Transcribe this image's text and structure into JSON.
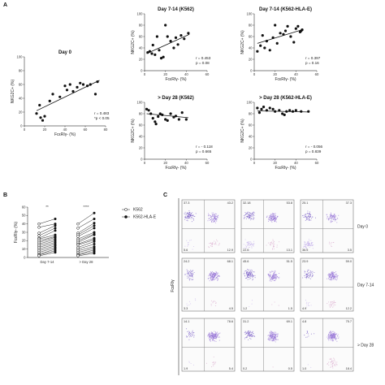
{
  "panels": {
    "A": "A",
    "B": "B",
    "C": "C"
  },
  "chart_data": [
    {
      "id": "day0",
      "type": "scatter",
      "title": "Day 0",
      "xlabel": "FcεRIγ- (%)",
      "ylabel": "NKG2C+ (%)",
      "xlim": [
        0,
        80
      ],
      "ylim": [
        0,
        100
      ],
      "xticks": [
        "0",
        "20",
        "40",
        "60",
        "80"
      ],
      "yticks": [
        "0",
        "20",
        "40",
        "60",
        "80",
        "100"
      ],
      "stat_r": "r = 0.483",
      "stat_p": "*p < 0.05",
      "fit": [
        [
          12,
          22
        ],
        [
          74,
          66
        ]
      ],
      "points": [
        [
          12,
          18
        ],
        [
          15,
          30
        ],
        [
          16,
          12
        ],
        [
          18,
          8
        ],
        [
          20,
          14
        ],
        [
          25,
          36
        ],
        [
          28,
          46
        ],
        [
          35,
          42
        ],
        [
          40,
          58
        ],
        [
          42,
          52
        ],
        [
          45,
          60
        ],
        [
          48,
          50
        ],
        [
          52,
          56
        ],
        [
          55,
          62
        ],
        [
          58,
          60
        ],
        [
          62,
          58
        ],
        [
          65,
          60
        ],
        [
          70,
          46
        ],
        [
          72,
          64
        ]
      ]
    },
    {
      "id": "d714k562",
      "type": "scatter",
      "title": "Day 7-14 (K562)",
      "xlabel": "FcεRIγ- (%)",
      "ylabel": "NKG2C+ (%)",
      "xlim": [
        0,
        60
      ],
      "ylim": [
        0,
        100
      ],
      "xticks": [
        "0",
        "20",
        "40",
        "60"
      ],
      "yticks": [
        "0",
        "20",
        "40",
        "60",
        "80",
        "100"
      ],
      "stat_r": "r = 0.453",
      "stat_p": "p = 0.08",
      "fit": [
        [
          2,
          30
        ],
        [
          43,
          64
        ]
      ],
      "points": [
        [
          3,
          32
        ],
        [
          5,
          34
        ],
        [
          7,
          30
        ],
        [
          8,
          45
        ],
        [
          10,
          28
        ],
        [
          12,
          60
        ],
        [
          14,
          36
        ],
        [
          16,
          22
        ],
        [
          18,
          24
        ],
        [
          20,
          80
        ],
        [
          22,
          60
        ],
        [
          25,
          52
        ],
        [
          28,
          40
        ],
        [
          30,
          58
        ],
        [
          32,
          46
        ],
        [
          35,
          62
        ],
        [
          38,
          56
        ],
        [
          42,
          66
        ]
      ]
    },
    {
      "id": "d714hlae",
      "type": "scatter",
      "title": "Day 7-14 (K562-HLA-E)",
      "xlabel": "FcεRIγ- (%)",
      "ylabel": "NKG2C+ (%)",
      "xlim": [
        0,
        60
      ],
      "ylim": [
        0,
        100
      ],
      "xticks": [
        "0",
        "20",
        "40",
        "60"
      ],
      "yticks": [
        "0",
        "20",
        "40",
        "60",
        "80",
        "100"
      ],
      "stat_r": "r = 0.397",
      "stat_p": "p = 0.16",
      "fit": [
        [
          3,
          48
        ],
        [
          46,
          72
        ]
      ],
      "points": [
        [
          3,
          34
        ],
        [
          6,
          44
        ],
        [
          8,
          62
        ],
        [
          10,
          40
        ],
        [
          12,
          52
        ],
        [
          15,
          36
        ],
        [
          18,
          58
        ],
        [
          20,
          80
        ],
        [
          22,
          48
        ],
        [
          25,
          66
        ],
        [
          28,
          64
        ],
        [
          30,
          70
        ],
        [
          32,
          78
        ],
        [
          35,
          60
        ],
        [
          38,
          50
        ],
        [
          40,
          74
        ],
        [
          42,
          78
        ],
        [
          44,
          68
        ],
        [
          45,
          70
        ],
        [
          46,
          72
        ]
      ]
    },
    {
      "id": "d28k562",
      "type": "scatter",
      "title": "> Day 28 (K562)",
      "xlabel": "FcεRIγ- (%)",
      "ylabel": "NKG2C+ (%)",
      "xlim": [
        0,
        60
      ],
      "ylim": [
        0,
        100
      ],
      "xticks": [
        "0",
        "20",
        "40",
        "60"
      ],
      "yticks": [
        "0",
        "20",
        "40",
        "60",
        "80",
        "100"
      ],
      "stat_r": "r = - 0.118",
      "stat_p": "p = 0.665",
      "fit": [
        [
          2,
          80
        ],
        [
          42,
          73
        ]
      ],
      "points": [
        [
          2,
          88
        ],
        [
          4,
          86
        ],
        [
          6,
          80
        ],
        [
          8,
          72
        ],
        [
          10,
          66
        ],
        [
          11,
          62
        ],
        [
          13,
          75
        ],
        [
          15,
          80
        ],
        [
          17,
          78
        ],
        [
          20,
          70
        ],
        [
          22,
          68
        ],
        [
          25,
          80
        ],
        [
          28,
          74
        ],
        [
          30,
          76
        ],
        [
          33,
          70
        ],
        [
          36,
          82
        ],
        [
          40,
          70
        ]
      ]
    },
    {
      "id": "d28hlae",
      "type": "scatter",
      "title": "> Day 28 (K562-HLA-E)",
      "xlabel": "FcεRIγ- (%)",
      "ylabel": "NKG2C+ (%)",
      "xlim": [
        0,
        60
      ],
      "ylim": [
        0,
        100
      ],
      "xticks": [
        "0",
        "20",
        "40",
        "60"
      ],
      "yticks": [
        "0",
        "20",
        "40",
        "60",
        "80",
        "100"
      ],
      "stat_r": "r = - 0.056",
      "stat_p": "p = 0.839",
      "fit": [
        [
          3,
          85
        ],
        [
          52,
          83
        ]
      ],
      "points": [
        [
          3,
          90
        ],
        [
          5,
          82
        ],
        [
          7,
          88
        ],
        [
          9,
          92
        ],
        [
          12,
          86
        ],
        [
          15,
          90
        ],
        [
          18,
          88
        ],
        [
          20,
          84
        ],
        [
          24,
          86
        ],
        [
          27,
          80
        ],
        [
          29,
          78
        ],
        [
          31,
          84
        ],
        [
          34,
          86
        ],
        [
          37,
          84
        ],
        [
          40,
          86
        ],
        [
          45,
          84
        ],
        [
          52,
          84
        ]
      ]
    },
    {
      "id": "paired",
      "type": "line",
      "ylabel": "FcεRIγ- (%)",
      "ylim": [
        0,
        60
      ],
      "yticks": [
        "0",
        "10",
        "20",
        "30",
        "40",
        "50",
        "60"
      ],
      "groups": [
        "Day 7-14",
        "> Day 28"
      ],
      "sig": [
        "**",
        "****"
      ],
      "legend": [
        "K562",
        "K562-HLA-E"
      ],
      "pairs": [
        [
          [
            40,
            46
          ],
          [
            40,
            53
          ]
        ],
        [
          [
            36,
            40
          ],
          [
            35,
            46
          ]
        ],
        [
          [
            29,
            38
          ],
          [
            29,
            41
          ]
        ],
        [
          [
            26,
            35
          ],
          [
            27,
            38
          ]
        ],
        [
          [
            23,
            32
          ],
          [
            25,
            35
          ]
        ],
        [
          [
            22,
            27
          ],
          [
            22,
            30
          ]
        ],
        [
          [
            20,
            25
          ],
          [
            20,
            28
          ]
        ],
        [
          [
            18,
            24
          ],
          [
            18,
            27
          ]
        ],
        [
          [
            16,
            22
          ],
          [
            16,
            23
          ]
        ],
        [
          [
            14,
            20
          ],
          [
            15,
            21
          ]
        ],
        [
          [
            12,
            18
          ],
          [
            12,
            19
          ]
        ],
        [
          [
            10,
            16
          ],
          [
            10,
            16
          ]
        ],
        [
          [
            8,
            14
          ],
          [
            8,
            13
          ]
        ],
        [
          [
            6,
            12
          ],
          [
            6,
            11
          ]
        ],
        [
          [
            4,
            10
          ],
          [
            4,
            9
          ]
        ],
        [
          [
            3,
            8
          ],
          [
            3,
            7
          ]
        ],
        [
          [
            2,
            6
          ],
          [
            2,
            5
          ]
        ]
      ]
    }
  ],
  "flow": {
    "axis_label": "FcεRIγ",
    "rows": [
      "Day 0",
      "Day 7-14",
      "> Day 28"
    ],
    "quadrants": [
      [
        [
          "37.3",
          "43.2",
          "5.6",
          "12.9"
        ],
        [
          "32.18",
          "53.8",
          "22.6",
          "13.1"
        ],
        [
          "25.1",
          "37.3",
          "36.5",
          "3.5"
        ]
      ],
      [
        [
          "24.2",
          "68.1",
          "3.3",
          "4.5"
        ],
        [
          "45.6",
          "51.5",
          "1.2",
          "1.5"
        ],
        [
          "23.9",
          "59.0",
          "4.9",
          "12.2"
        ]
      ],
      [
        [
          "14.1",
          "78.6",
          "1.9",
          "5.4"
        ],
        [
          "31.2",
          "69.1",
          "0.2",
          "0.5"
        ],
        [
          "4.8",
          "75.7",
          "1.0",
          "18.4"
        ]
      ]
    ]
  }
}
